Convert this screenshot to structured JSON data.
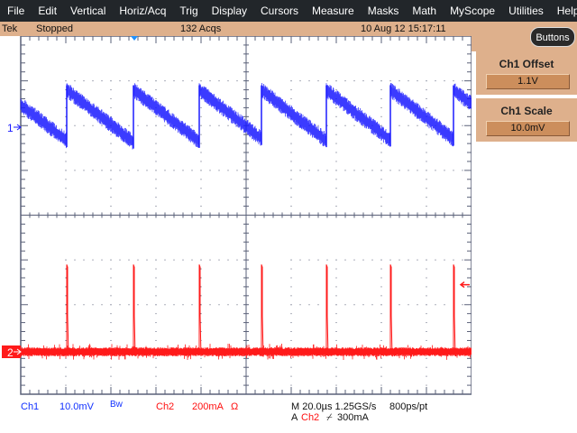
{
  "menu": [
    "File",
    "Edit",
    "Vertical",
    "Horiz/Acq",
    "Trig",
    "Display",
    "Cursors",
    "Measure",
    "Masks",
    "Math",
    "MyScope",
    "Utilities",
    "Help"
  ],
  "status": {
    "brand": "Tek",
    "state": "Stopped",
    "acqs": "132 Acqs",
    "datetime": "10 Aug 12 15:17:11"
  },
  "panel": {
    "buttons_label": "Buttons",
    "ch1_offset_title": "Ch1 Offset",
    "ch1_offset_value": "1.1V",
    "ch1_scale_title": "Ch1 Scale",
    "ch1_scale_value": "10.0mV"
  },
  "readout": {
    "ch1": "Ch1",
    "ch1_scale": "10.0mV",
    "bw": "Bw",
    "ch2": "Ch2",
    "ch2_scale": "200mA",
    "ch2_term": "Ω",
    "horiz": "M 20.0µs 1.25GS/s",
    "res": "800ps/pt",
    "trig_prefix": "A",
    "trig_src": "Ch2",
    "trig_slope": "⌿",
    "trig_level": "300mA"
  },
  "markers": {
    "ch1": "1",
    "ch2": "2"
  },
  "colors": {
    "ch1": "#1a1aff",
    "ch2": "#ff1a1a",
    "status_bg": "#deb08c",
    "menu_bg": "#22262a",
    "graticule": "#5a6078"
  },
  "traces": {
    "time_per_div_us": 20,
    "ch1_reset_times_us": [
      20.4,
      50,
      79.2,
      106.8,
      135.6,
      164,
      192
    ],
    "ch1_peak_mV": 8.3,
    "ch1_trough_mV": -3,
    "ch2_spike_times_us": [
      20.4,
      50,
      79.2,
      106.8,
      135.6,
      164,
      192
    ],
    "ch2_spike_peak_mA": 390,
    "ch2_baseline_mA": 0
  }
}
